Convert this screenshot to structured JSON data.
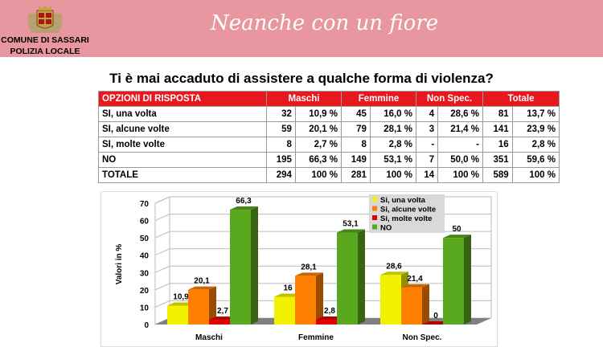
{
  "header": {
    "org_line1": "COMUNE DI SASSARI",
    "org_line2": "POLIZIA LOCALE",
    "title": "Neanche con un fiore"
  },
  "question": "Ti è mai accaduto di assistere a qualche forma di violenza?",
  "table": {
    "headers": [
      "OPZIONI DI RISPOSTA",
      "Maschi",
      "Femmine",
      "Non Spec.",
      "Totale"
    ],
    "rows": [
      [
        "SI, una volta",
        "32",
        "10,9 %",
        "45",
        "16,0 %",
        "4",
        "28,6 %",
        "81",
        "13,7 %"
      ],
      [
        "SI, alcune volte",
        "59",
        "20,1 %",
        "79",
        "28,1 %",
        "3",
        "21,4 %",
        "141",
        "23,9 %"
      ],
      [
        "SI, molte volte",
        "8",
        "2,7 %",
        "8",
        "2,8 %",
        "-",
        "-",
        "16",
        "2,8 %"
      ],
      [
        "NO",
        "195",
        "66,3 %",
        "149",
        "53,1 %",
        "7",
        "50,0 %",
        "351",
        "59,6 %"
      ],
      [
        "TOTALE",
        "294",
        "100 %",
        "281",
        "100 %",
        "14",
        "100 %",
        "589",
        "100 %"
      ]
    ]
  },
  "chart_data": {
    "type": "bar",
    "ylabel": "Valori in %",
    "ylim": [
      0,
      70
    ],
    "yticks": [
      "0",
      "10",
      "20",
      "30",
      "40",
      "50",
      "60",
      "70"
    ],
    "categories": [
      "Maschi",
      "Femmine",
      "Non Spec."
    ],
    "series": [
      {
        "name": "Si, una volta",
        "color": "#f2f200",
        "values": [
          10.9,
          16,
          28.6
        ],
        "labels": [
          "10,9",
          "16",
          "28,6"
        ]
      },
      {
        "name": "Si, alcune volte",
        "color": "#ff8000",
        "values": [
          20.1,
          28.1,
          21.4
        ],
        "labels": [
          "20,1",
          "28,1",
          "21,4"
        ]
      },
      {
        "name": "Si, molte volte",
        "color": "#e00000",
        "values": [
          2.7,
          2.8,
          0
        ],
        "labels": [
          "2,7",
          "2,8",
          "0"
        ]
      },
      {
        "name": "NO",
        "color": "#5aa81e",
        "values": [
          66.3,
          53.1,
          50
        ],
        "labels": [
          "66,3",
          "53,1",
          "50"
        ]
      }
    ],
    "legend": "top-right",
    "grid": true,
    "style": "3d"
  }
}
